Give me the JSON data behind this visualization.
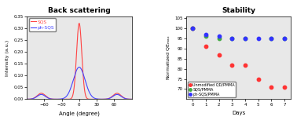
{
  "title_left": "Back scattering",
  "title_right": "Stability",
  "left_xlabel": "Angle (degree)",
  "left_ylabel": "Intensity (a.u.)",
  "right_xlabel": "Days",
  "right_ylabel": "Normalized QEₘₓₓ",
  "left_legend": [
    "SQS",
    "ph-SQS"
  ],
  "left_line_colors": [
    "#ff4444",
    "#4444ff"
  ],
  "left_xlim": [
    -90,
    90
  ],
  "left_ylim": [
    0,
    0.35
  ],
  "left_yticks": [
    0.0,
    0.05,
    0.1,
    0.15,
    0.2,
    0.25,
    0.3,
    0.35
  ],
  "left_xticks": [
    -60,
    -30,
    0,
    30,
    60
  ],
  "right_xlim": [
    -0.5,
    7.5
  ],
  "right_ylim": [
    65,
    106
  ],
  "right_yticks": [
    70,
    75,
    80,
    85,
    90,
    95,
    100,
    105
  ],
  "right_xticks": [
    0,
    1,
    2,
    3,
    4,
    5,
    6,
    7
  ],
  "scatter_colors": [
    "#ff3333",
    "#44aa44",
    "#3333ff"
  ],
  "scatter_labels": [
    "Unmodified QD/PMMA",
    "SQS/PMMA",
    "ph-SQS/PMMA"
  ],
  "unmodified_x": [
    0,
    1,
    2,
    3,
    4,
    5,
    6,
    7
  ],
  "unmodified_y": [
    100,
    91,
    87,
    82,
    82,
    75,
    71,
    71
  ],
  "sqs_x": [
    0,
    1,
    2,
    3,
    4,
    6,
    7
  ],
  "sqs_y": [
    100,
    96,
    95,
    95,
    95,
    95,
    95
  ],
  "phsqs_x": [
    0,
    1,
    2,
    3,
    4,
    5,
    6,
    7
  ],
  "phsqs_y": [
    100,
    97,
    96,
    95,
    95,
    95,
    95,
    95
  ],
  "bg_color": "#e8e8e8"
}
